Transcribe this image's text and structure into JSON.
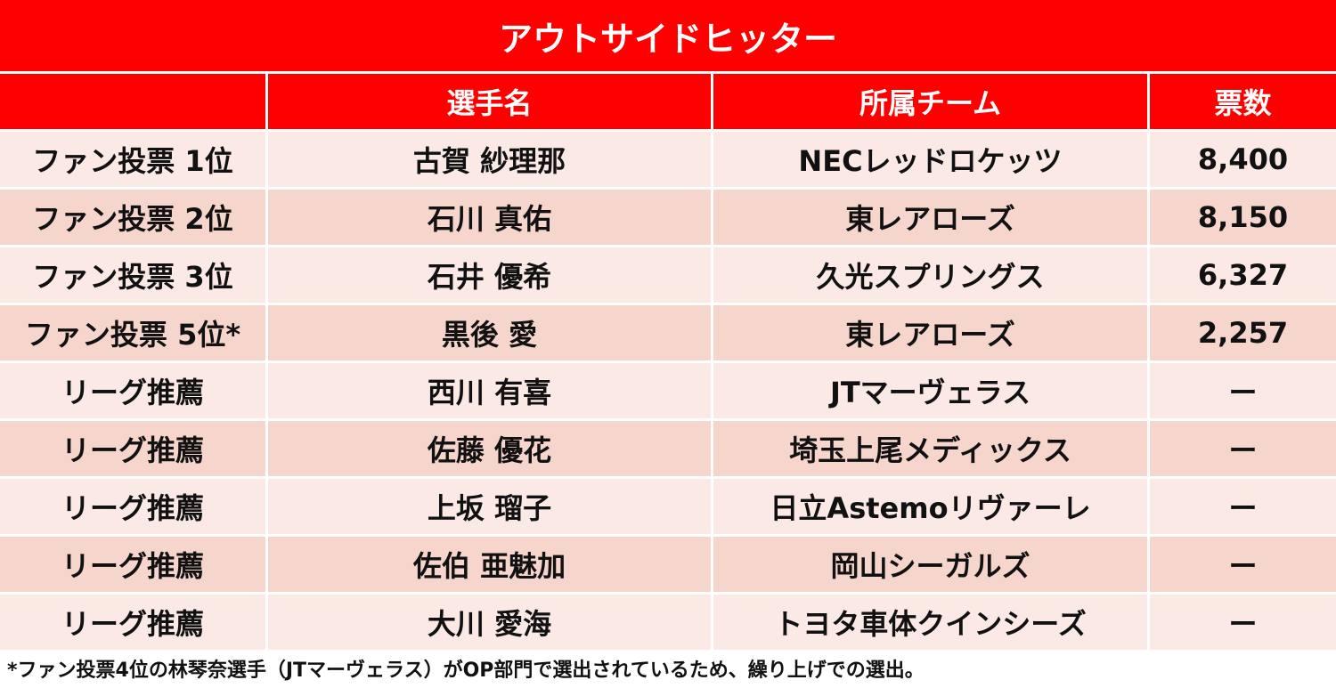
{
  "title": "アウトサイドヒッター",
  "headers": [
    "",
    "選手名",
    "所属チーム",
    "票数"
  ],
  "rows": [
    {
      "rank": "ファン投票 1位",
      "name": "古賀 紗理那",
      "team": "NECレッドロケッツ",
      "votes": "8,400"
    },
    {
      "rank": "ファン投票 2位",
      "name": "石川 真佑",
      "team": "東レアローズ",
      "votes": "8,150"
    },
    {
      "rank": "ファン投票 3位",
      "name": "石井 優希",
      "team": "久光スプリングス",
      "votes": "6,327"
    },
    {
      "rank": "ファン投票 5位*",
      "name": "黒後 愛",
      "team": "東レアローズ",
      "votes": "2,257"
    },
    {
      "rank": "リーグ推薦",
      "name": "西川 有喜",
      "team": "JTマーヴェラス",
      "votes": "ー"
    },
    {
      "rank": "リーグ推薦",
      "name": "佐藤 優花",
      "team": "埼玉上尾メディックス",
      "votes": "ー"
    },
    {
      "rank": "リーグ推薦",
      "name": "上坂 瑠子",
      "team": "日立Astemoリヴァーレ",
      "votes": "ー"
    },
    {
      "rank": "リーグ推薦",
      "name": "佐伯 亜魅加",
      "team": "岡山シーガルズ",
      "votes": "ー"
    },
    {
      "rank": "リーグ推薦",
      "name": "大川 愛海",
      "team": "トヨタ車体クインシーズ",
      "votes": "ー"
    }
  ],
  "footnote": "*ファン投票4位の林琴奈選手（JTマーヴェラス）がOP部門で選出されているため、繰り上げでの選出。",
  "colors": {
    "header_red": "#ff0000",
    "row_light": "#fbe9e5",
    "row_dark": "#f6d5cc"
  }
}
